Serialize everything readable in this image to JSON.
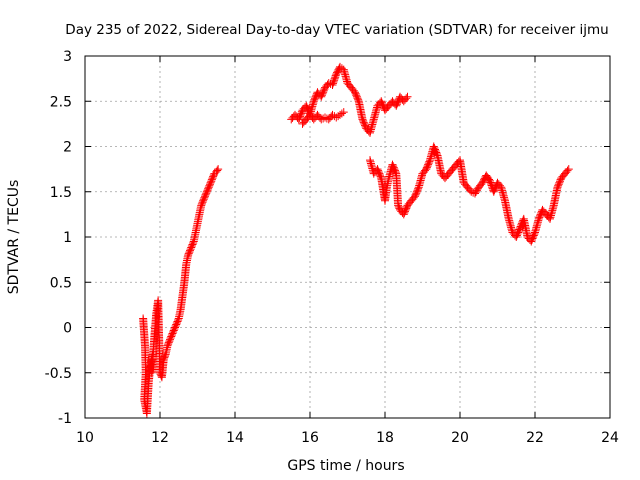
{
  "chart_data": {
    "type": "scatter",
    "title": "Day 235 of 2022, Sidereal Day-to-day VTEC variation (SDTVAR) for receiver ijmu",
    "xlabel": "GPS time / hours",
    "ylabel": "SDTVAR / TECUs",
    "xlim": [
      10,
      24
    ],
    "ylim": [
      -1,
      3
    ],
    "x_ticks": [
      "10",
      "12",
      "14",
      "16",
      "18",
      "20",
      "22",
      "24"
    ],
    "y_ticks": [
      "-1",
      "-0.5",
      "0",
      "0.5",
      "1",
      "1.5",
      "2",
      "2.5",
      "3"
    ],
    "grid": true,
    "marker": "+",
    "color": "#ff0000",
    "legend": "none",
    "series": [
      {
        "segments": [
          {
            "x": [
              11.55,
              11.6,
              11.62,
              11.58,
              11.65,
              11.7,
              11.75,
              11.8,
              11.78,
              11.85,
              11.9,
              11.95,
              12.0,
              12.05,
              12.1,
              12.15,
              12.2,
              12.3,
              12.4,
              12.5,
              12.55,
              12.6,
              12.65,
              12.7,
              12.75,
              12.8,
              12.85,
              12.9,
              12.95,
              13.0,
              13.05,
              13.1,
              13.15,
              13.2,
              13.25,
              13.3,
              13.35,
              13.4,
              13.45,
              13.5,
              13.55
            ],
            "y": [
              0.1,
              -0.2,
              -0.5,
              -0.8,
              -0.95,
              -0.6,
              -0.4,
              -0.3,
              -0.5,
              -0.1,
              0.15,
              0.3,
              -0.5,
              -0.55,
              -0.35,
              -0.3,
              -0.2,
              -0.1,
              0.0,
              0.1,
              0.2,
              0.35,
              0.5,
              0.7,
              0.8,
              0.85,
              0.9,
              0.95,
              1.05,
              1.15,
              1.25,
              1.35,
              1.4,
              1.45,
              1.5,
              1.55,
              1.6,
              1.65,
              1.7,
              1.72,
              1.75
            ]
          },
          {
            "x": [
              15.5,
              15.6,
              15.7,
              15.8,
              15.9,
              16.0,
              16.1,
              16.2,
              16.3,
              16.4,
              16.5,
              16.6,
              16.7,
              16.8,
              16.9,
              17.0,
              17.1,
              17.2,
              17.3,
              17.4,
              17.5,
              17.6,
              17.7,
              17.8,
              17.9,
              18.0,
              18.1,
              18.2,
              18.3,
              18.4,
              18.5,
              18.6
            ],
            "y": [
              2.3,
              2.35,
              2.3,
              2.4,
              2.45,
              2.35,
              2.5,
              2.6,
              2.55,
              2.65,
              2.7,
              2.68,
              2.8,
              2.88,
              2.85,
              2.7,
              2.65,
              2.6,
              2.5,
              2.3,
              2.2,
              2.15,
              2.3,
              2.45,
              2.5,
              2.4,
              2.45,
              2.5,
              2.45,
              2.55,
              2.5,
              2.55
            ]
          },
          {
            "x": [
              15.8,
              15.9,
              16.0,
              16.1,
              16.2,
              16.3,
              16.4,
              16.5,
              16.6,
              16.7,
              16.8,
              16.9
            ],
            "y": [
              2.25,
              2.3,
              2.35,
              2.3,
              2.35,
              2.3,
              2.32,
              2.3,
              2.35,
              2.32,
              2.35,
              2.38
            ]
          },
          {
            "x": [
              17.6,
              17.7,
              17.8,
              17.9,
              18.0,
              18.05,
              18.1,
              18.2,
              18.3,
              18.35,
              18.4,
              18.5,
              18.6,
              18.7,
              18.8,
              18.9,
              19.0,
              19.1,
              19.2,
              19.3,
              19.4,
              19.5,
              19.6,
              19.7,
              19.8,
              19.9,
              20.0,
              20.1,
              20.2,
              20.3,
              20.4,
              20.5,
              20.6,
              20.7,
              20.8,
              20.9,
              21.0,
              21.1,
              21.2,
              21.3,
              21.4,
              21.5,
              21.6,
              21.7,
              21.8,
              21.9,
              22.0,
              22.1,
              22.2,
              22.3,
              22.4,
              22.5,
              22.6,
              22.7,
              22.8,
              22.9
            ],
            "y": [
              1.85,
              1.7,
              1.75,
              1.65,
              1.4,
              1.55,
              1.65,
              1.8,
              1.7,
              1.35,
              1.3,
              1.25,
              1.35,
              1.4,
              1.45,
              1.55,
              1.7,
              1.75,
              1.85,
              2.0,
              1.9,
              1.7,
              1.65,
              1.7,
              1.75,
              1.8,
              1.85,
              1.6,
              1.55,
              1.5,
              1.48,
              1.55,
              1.6,
              1.68,
              1.62,
              1.5,
              1.6,
              1.55,
              1.4,
              1.2,
              1.05,
              1.0,
              1.1,
              1.2,
              1.0,
              0.95,
              1.05,
              1.2,
              1.3,
              1.25,
              1.2,
              1.35,
              1.55,
              1.65,
              1.7,
              1.75
            ]
          }
        ]
      }
    ]
  }
}
